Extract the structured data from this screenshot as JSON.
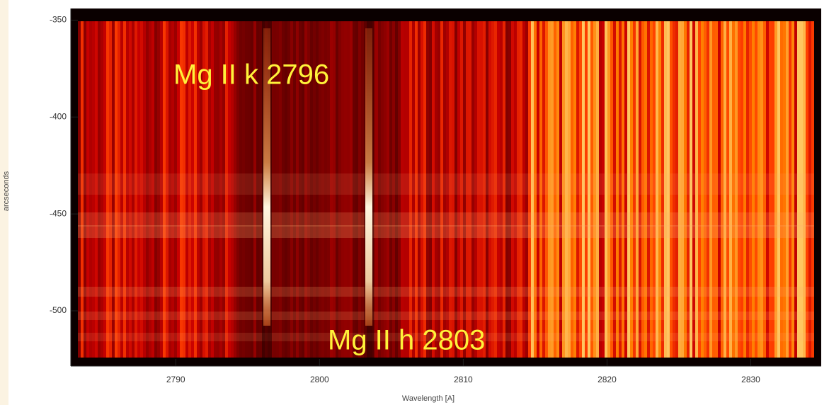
{
  "chart_data": {
    "type": "spectrogram",
    "xlabel": "Wavelength [A]",
    "ylabel": "arcseconds",
    "xlim": [
      2782.7,
      2834.9
    ],
    "ylim": [
      -528.5,
      -344
    ],
    "xticks": [
      2790,
      2800,
      2810,
      2820,
      2830
    ],
    "yticks": [
      -350,
      -400,
      -450,
      -500
    ],
    "annotations": [
      "Mg II k 2796",
      "Mg II h 2803"
    ]
  }
}
